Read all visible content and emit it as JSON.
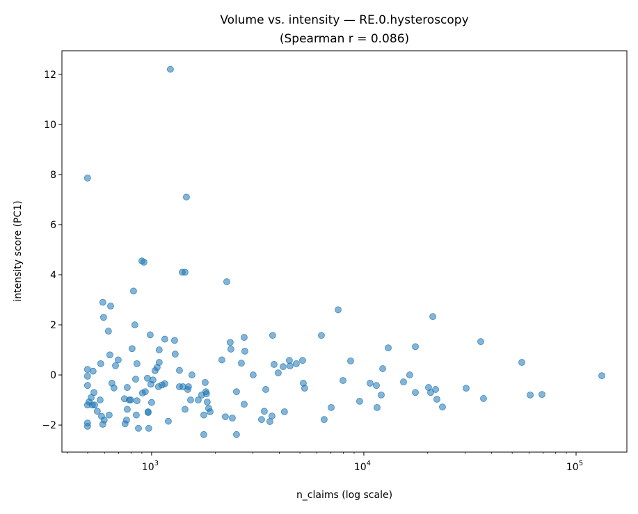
{
  "chart_data": {
    "type": "scatter",
    "title": "Volume vs. intensity — RE.0.hysteroscopy",
    "subtitle": "(Spearman r = 0.086)",
    "xlabel": "n_claims (log scale)",
    "ylabel": "intensity score (PC1)",
    "xscale": "log",
    "xlim": [
      378,
      173500
    ],
    "ylim": [
      -3.08,
      12.94
    ],
    "xticks": [
      {
        "value": 1000,
        "base": "10",
        "exp": "3"
      },
      {
        "value": 10000,
        "base": "10",
        "exp": "4"
      },
      {
        "value": 100000,
        "base": "10",
        "exp": "5"
      }
    ],
    "yticks": [
      {
        "value": -2,
        "label": "−2"
      },
      {
        "value": 0,
        "label": "0"
      },
      {
        "value": 2,
        "label": "2"
      },
      {
        "value": 4,
        "label": "4"
      },
      {
        "value": 6,
        "label": "6"
      },
      {
        "value": 8,
        "label": "8"
      },
      {
        "value": 10,
        "label": "10"
      },
      {
        "value": 12,
        "label": "12"
      }
    ],
    "grid": false,
    "point_color": "#1f77b4",
    "point_alpha": 0.55,
    "points": [
      [
        499,
        7.86
      ],
      [
        499,
        -0.05
      ],
      [
        499,
        0.22
      ],
      [
        499,
        -0.42
      ],
      [
        499,
        -1.2
      ],
      [
        499,
        -1.92
      ],
      [
        499,
        -2.05
      ],
      [
        507,
        -1.08
      ],
      [
        519,
        -0.9
      ],
      [
        526,
        -1.2
      ],
      [
        539,
        -1.2
      ],
      [
        535,
        -0.7
      ],
      [
        530,
        0.15
      ],
      [
        555,
        -1.45
      ],
      [
        576,
        0.45
      ],
      [
        572,
        -1.0
      ],
      [
        581,
        -1.65
      ],
      [
        589,
        -1.97
      ],
      [
        598,
        -1.8
      ],
      [
        589,
        2.9
      ],
      [
        594,
        2.3
      ],
      [
        626,
        1.75
      ],
      [
        631,
        -1.6
      ],
      [
        636,
        0.8
      ],
      [
        641,
        2.75
      ],
      [
        650,
        -0.33
      ],
      [
        665,
        -0.52
      ],
      [
        676,
        0.37
      ],
      [
        696,
        0.6
      ],
      [
        745,
        -0.95
      ],
      [
        750,
        -1.95
      ],
      [
        762,
        -1.8
      ],
      [
        768,
        -1.37
      ],
      [
        768,
        -0.5
      ],
      [
        785,
        -1.0
      ],
      [
        797,
        -1.0
      ],
      [
        809,
        1.05
      ],
      [
        822,
        3.35
      ],
      [
        834,
        2.0
      ],
      [
        841,
        -0.17
      ],
      [
        847,
        -1.6
      ],
      [
        853,
        0.45
      ],
      [
        853,
        -1.03
      ],
      [
        867,
        -2.13
      ],
      [
        900,
        4.55
      ],
      [
        920,
        4.5
      ],
      [
        906,
        -0.72
      ],
      [
        934,
        -0.67
      ],
      [
        956,
        -0.13
      ],
      [
        963,
        -1.5
      ],
      [
        970,
        -2.13
      ],
      [
        963,
        -1.47
      ],
      [
        985,
        1.6
      ],
      [
        992,
        -0.37
      ],
      [
        1000,
        -1.1
      ],
      [
        1015,
        -0.2
      ],
      [
        1038,
        0.17
      ],
      [
        1062,
        0.3
      ],
      [
        1086,
        1.0
      ],
      [
        1086,
        0.5
      ],
      [
        1078,
        -0.47
      ],
      [
        1120,
        -0.4
      ],
      [
        1154,
        -0.35
      ],
      [
        1154,
        1.43
      ],
      [
        1199,
        -1.85
      ],
      [
        1226,
        12.2
      ],
      [
        1283,
        1.38
      ],
      [
        1292,
        0.83
      ],
      [
        1353,
        0.18
      ],
      [
        1353,
        -0.47
      ],
      [
        1405,
        -0.47
      ],
      [
        1394,
        4.1
      ],
      [
        1437,
        4.1
      ],
      [
        1459,
        7.1
      ],
      [
        1437,
        -1.37
      ],
      [
        1481,
        -0.58
      ],
      [
        1492,
        -0.47
      ],
      [
        1527,
        -1.0
      ],
      [
        1549,
        0.0
      ],
      [
        1659,
        -1.0
      ],
      [
        1722,
        -0.8
      ],
      [
        1762,
        -1.6
      ],
      [
        1762,
        -2.38
      ],
      [
        1788,
        -0.3
      ],
      [
        1802,
        -0.67
      ],
      [
        1815,
        -0.75
      ],
      [
        1829,
        -1.08
      ],
      [
        1857,
        -1.33
      ],
      [
        1886,
        -1.47
      ],
      [
        2143,
        0.6
      ],
      [
        2226,
        -1.67
      ],
      [
        2260,
        3.72
      ],
      [
        2346,
        1.3
      ],
      [
        2364,
        1.03
      ],
      [
        2401,
        -1.72
      ],
      [
        2512,
        -2.38
      ],
      [
        2512,
        -0.67
      ],
      [
        2649,
        0.47
      ],
      [
        2730,
        1.5
      ],
      [
        2750,
        0.95
      ],
      [
        2730,
        -1.17
      ],
      [
        3010,
        0.0
      ],
      [
        3297,
        -1.78
      ],
      [
        3397,
        -1.45
      ],
      [
        3450,
        -0.58
      ],
      [
        3608,
        -1.86
      ],
      [
        3690,
        -1.64
      ],
      [
        3718,
        1.58
      ],
      [
        3776,
        0.42
      ],
      [
        3951,
        0.08
      ],
      [
        4166,
        0.33
      ],
      [
        4227,
        -1.47
      ],
      [
        4458,
        0.58
      ],
      [
        4490,
        0.36
      ],
      [
        4808,
        0.45
      ],
      [
        5145,
        0.58
      ],
      [
        5186,
        -0.33
      ],
      [
        5263,
        -0.53
      ],
      [
        6310,
        1.58
      ],
      [
        6500,
        -1.78
      ],
      [
        7016,
        -1.3
      ],
      [
        7567,
        2.6
      ],
      [
        7977,
        -0.22
      ],
      [
        8665,
        0.56
      ],
      [
        9555,
        -1.05
      ],
      [
        10700,
        -0.33
      ],
      [
        11460,
        -0.42
      ],
      [
        11540,
        -1.3
      ],
      [
        12080,
        -0.8
      ],
      [
        12270,
        0.25
      ],
      [
        13030,
        1.08
      ],
      [
        15380,
        -0.28
      ],
      [
        16450,
        0.0
      ],
      [
        17490,
        -0.7
      ],
      [
        17490,
        1.13
      ],
      [
        20180,
        -0.5
      ],
      [
        20640,
        -0.7
      ],
      [
        21130,
        2.33
      ],
      [
        21780,
        -0.58
      ],
      [
        22090,
        -0.97
      ],
      [
        23470,
        -1.28
      ],
      [
        30340,
        -0.53
      ],
      [
        35550,
        1.33
      ],
      [
        36640,
        -0.94
      ],
      [
        55500,
        0.5
      ],
      [
        60800,
        -0.8
      ],
      [
        69080,
        -0.78
      ],
      [
        132200,
        -0.03
      ]
    ]
  }
}
